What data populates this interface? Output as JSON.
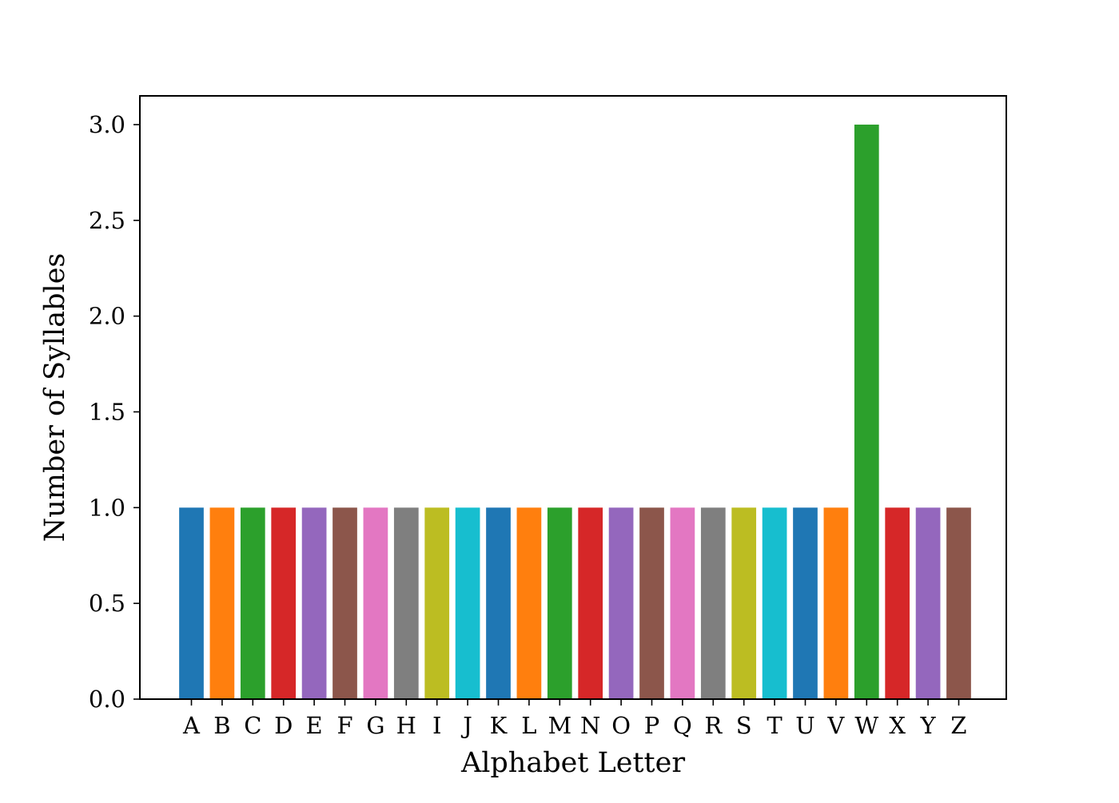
{
  "chart_data": {
    "type": "bar",
    "title": "",
    "xlabel": "Alphabet Letter",
    "ylabel": "Number of Syllables",
    "categories": [
      "A",
      "B",
      "C",
      "D",
      "E",
      "F",
      "G",
      "H",
      "I",
      "J",
      "K",
      "L",
      "M",
      "N",
      "O",
      "P",
      "Q",
      "R",
      "S",
      "T",
      "U",
      "V",
      "W",
      "X",
      "Y",
      "Z"
    ],
    "values": [
      1,
      1,
      1,
      1,
      1,
      1,
      1,
      1,
      1,
      1,
      1,
      1,
      1,
      1,
      1,
      1,
      1,
      1,
      1,
      1,
      1,
      1,
      3,
      1,
      1,
      1
    ],
    "ylim": [
      0,
      3.15
    ],
    "yticks": [
      "0.0",
      "0.5",
      "1.0",
      "1.5",
      "2.0",
      "2.5",
      "3.0"
    ],
    "grid": false,
    "legend": "none",
    "colors": [
      "#1f77b4",
      "#ff7f0e",
      "#2ca02c",
      "#d62728",
      "#9467bd",
      "#8c564b",
      "#e377c2",
      "#7f7f7f",
      "#bcbd22",
      "#17becf"
    ]
  }
}
